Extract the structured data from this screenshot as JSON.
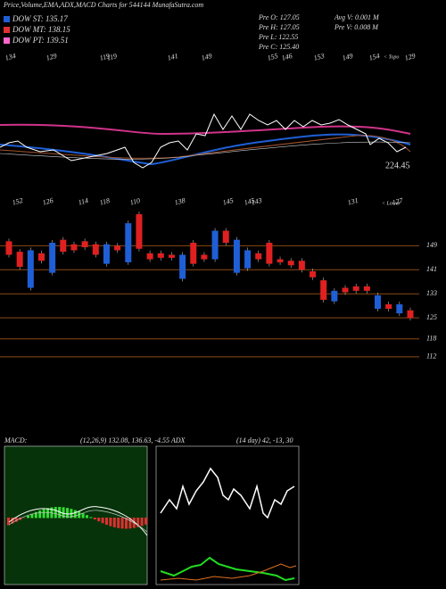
{
  "header": {
    "title": "Price,Volume,EMA,ADX,MACD Charts for 544144  MunafaSutra.com",
    "legend": [
      {
        "label": "DOW ST: 135.17",
        "color": "#1f5fd6"
      },
      {
        "label": "DOW MT: 138.15",
        "color": "#e03030"
      },
      {
        "label": "DOW PT: 139.51",
        "color": "#ff66cc"
      }
    ],
    "stats": [
      "Pre   O: 127.05",
      "Pre   H: 127.05",
      "Pre   L: 122.55",
      "Pre   C: 125.40",
      "Avg V: 0.001 M",
      "Pre   V: 0.008 M"
    ]
  },
  "price_panel": {
    "top_labels": [
      "134",
      "129",
      "119",
      "119",
      "141",
      "149",
      "155",
      "146",
      "153",
      "149",
      "154",
      "129"
    ],
    "mid_labels": [
      "152",
      "126",
      "114",
      "118",
      "110",
      "138",
      "145",
      "145",
      "143",
      "131",
      "127"
    ],
    "topo": "< Topo",
    "lower": "< Lower",
    "last": "224.45",
    "ylim": [
      109,
      161
    ],
    "yticks": [
      149,
      141,
      133,
      125,
      118,
      112
    ],
    "candles": [
      {
        "open": 146,
        "close": 150.5
      },
      {
        "open": 142,
        "close": 147
      },
      {
        "open": 147.5,
        "close": 135
      },
      {
        "open": 144,
        "close": 146.5
      },
      {
        "open": 150,
        "close": 140
      },
      {
        "open": 147,
        "close": 151
      },
      {
        "open": 147.5,
        "close": 149.5
      },
      {
        "open": 148.5,
        "close": 150.5
      },
      {
        "open": 146,
        "close": 149.5
      },
      {
        "open": 149.5,
        "close": 143
      },
      {
        "open": 147.5,
        "close": 149
      },
      {
        "open": 156.5,
        "close": 143.5
      },
      {
        "open": 148,
        "close": 159.5
      },
      {
        "open": 144.5,
        "close": 146.5
      },
      {
        "open": 145,
        "close": 146.5
      },
      {
        "open": 145,
        "close": 146
      },
      {
        "open": 146,
        "close": 138
      },
      {
        "open": 143,
        "close": 150
      },
      {
        "open": 144.5,
        "close": 146
      },
      {
        "open": 154,
        "close": 144.5
      },
      {
        "open": 150,
        "close": 154
      },
      {
        "open": 151,
        "close": 140
      },
      {
        "open": 147.5,
        "close": 141.5
      },
      {
        "open": 144.5,
        "close": 146.5
      },
      {
        "open": 143,
        "close": 150
      },
      {
        "open": 143.5,
        "close": 144.5
      },
      {
        "open": 142.5,
        "close": 144
      },
      {
        "open": 141,
        "close": 144
      },
      {
        "open": 138.5,
        "close": 140.5
      },
      {
        "open": 131,
        "close": 137.5
      },
      {
        "open": 134,
        "close": 130.5
      },
      {
        "open": 133.5,
        "close": 135
      },
      {
        "open": 134,
        "close": 135.5
      },
      {
        "open": 134,
        "close": 135.5
      },
      {
        "open": 132.5,
        "close": 128
      },
      {
        "open": 128,
        "close": 129.5
      },
      {
        "open": 129.5,
        "close": 126.5
      },
      {
        "open": 125,
        "close": 127.5
      }
    ]
  },
  "indicators": {
    "macd": "MACD:",
    "macd_values": "(12,26,9) 132.08, 136.63, -4.55 ADX",
    "adx_values": "(14 day) 42, -13, 30"
  }
}
